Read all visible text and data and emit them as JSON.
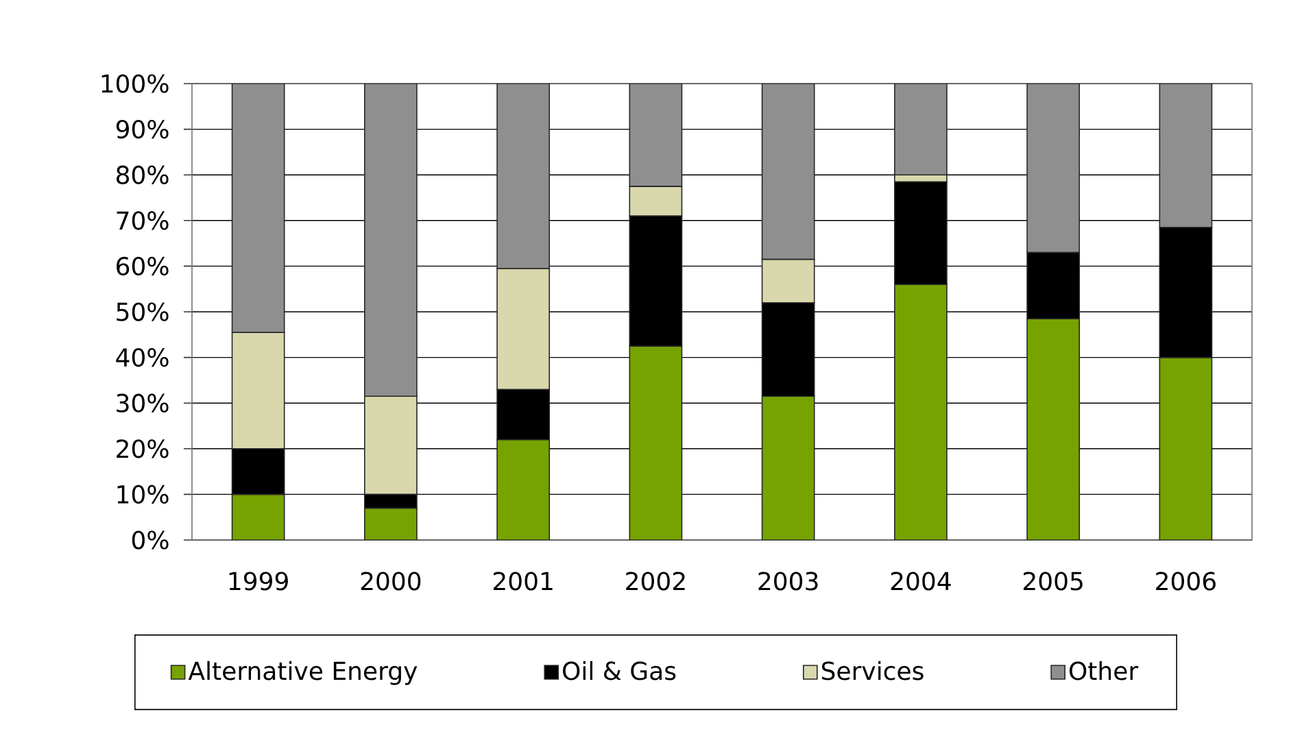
{
  "chart_data": {
    "type": "bar",
    "stacked": true,
    "categories": [
      "1999",
      "2000",
      "2001",
      "2002",
      "2003",
      "2004",
      "2005",
      "2006"
    ],
    "series": [
      {
        "name": "Alternative Energy",
        "color": "#77a300",
        "values": [
          10,
          7,
          22,
          42.5,
          31.5,
          56,
          48.5,
          40
        ]
      },
      {
        "name": "Oil & Gas",
        "color": "#000000",
        "values": [
          10,
          3,
          11,
          28.5,
          20.5,
          22.5,
          14.5,
          28.5
        ]
      },
      {
        "name": "Services",
        "color": "#d9d7ac",
        "values": [
          25.5,
          21.5,
          26.5,
          6.5,
          9.5,
          1.5,
          null,
          null
        ]
      },
      {
        "name": "Other",
        "color": "#8f8f8f",
        "values": [
          54.5,
          68.5,
          40.5,
          22.5,
          38.5,
          20,
          37,
          31.5
        ]
      }
    ],
    "ylim": [
      0,
      100
    ],
    "yticks": [
      {
        "value": 0,
        "label": "0%"
      },
      {
        "value": 10,
        "label": "10%"
      },
      {
        "value": 20,
        "label": "20%"
      },
      {
        "value": 30,
        "label": "30%"
      },
      {
        "value": 40,
        "label": "40%"
      },
      {
        "value": 50,
        "label": "50%"
      },
      {
        "value": 60,
        "label": "60%"
      },
      {
        "value": 70,
        "label": "70%"
      },
      {
        "value": 80,
        "label": "80%"
      },
      {
        "value": 90,
        "label": "90%"
      },
      {
        "value": 100,
        "label": "100%"
      }
    ],
    "grid": "y",
    "legend": "bottom"
  }
}
